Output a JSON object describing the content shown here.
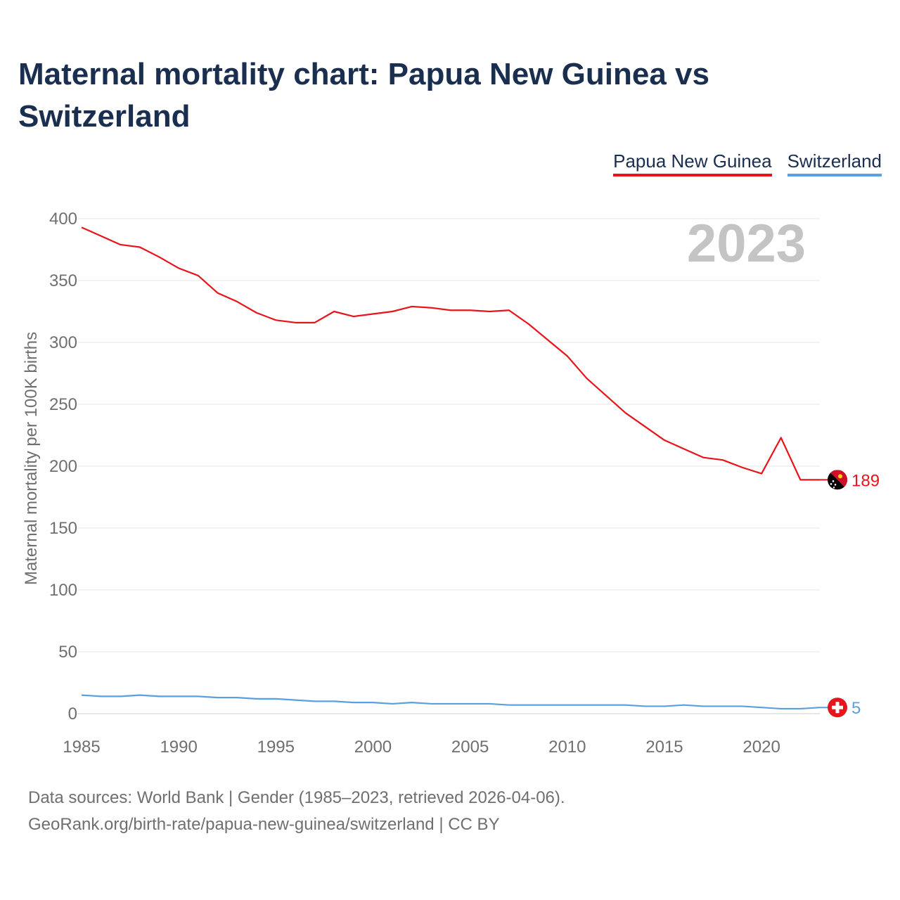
{
  "title": "Maternal mortality chart: Papua New Guinea vs Switzerland",
  "legend": {
    "png_label": "Papua New Guinea",
    "che_label": "Switzerland"
  },
  "year_watermark": "2023",
  "footer": {
    "line1": "Data sources: World Bank | Gender (1985–2023, retrieved 2026-04-06).",
    "line2": "GeoRank.org/birth-rate/papua-new-guinea/switzerland | CC BY"
  },
  "chart_data": {
    "type": "line",
    "title": "Maternal mortality chart: Papua New Guinea vs Switzerland",
    "xlabel": "",
    "ylabel": "Maternal mortality per 100K births",
    "xlim": [
      1985,
      2023
    ],
    "ylim": [
      0,
      400
    ],
    "x_ticks": [
      1985,
      1990,
      1995,
      2000,
      2005,
      2010,
      2015,
      2020
    ],
    "y_ticks": [
      0,
      50,
      100,
      150,
      200,
      250,
      300,
      350,
      400
    ],
    "grid": true,
    "legend_position": "top-right",
    "x": [
      1985,
      1986,
      1987,
      1988,
      1989,
      1990,
      1991,
      1992,
      1993,
      1994,
      1995,
      1996,
      1997,
      1998,
      1999,
      2000,
      2001,
      2002,
      2003,
      2004,
      2005,
      2006,
      2007,
      2008,
      2009,
      2010,
      2011,
      2012,
      2013,
      2014,
      2015,
      2016,
      2017,
      2018,
      2019,
      2020,
      2021,
      2022,
      2023
    ],
    "series": [
      {
        "name": "Papua New Guinea",
        "color": "#e8141b",
        "end_label": "189",
        "flag_icon": "papua-new-guinea-flag-icon",
        "values": [
          393,
          386,
          379,
          377,
          369,
          360,
          354,
          340,
          333,
          324,
          318,
          316,
          316,
          325,
          321,
          323,
          325,
          329,
          328,
          326,
          326,
          325,
          326,
          315,
          302,
          289,
          271,
          257,
          243,
          232,
          221,
          214,
          207,
          205,
          199,
          194,
          223,
          189,
          189
        ]
      },
      {
        "name": "Switzerland",
        "color": "#5b9fe0",
        "end_label": "5",
        "flag_icon": "switzerland-flag-icon",
        "values": [
          15,
          14,
          14,
          15,
          14,
          14,
          14,
          13,
          13,
          12,
          12,
          11,
          10,
          10,
          9,
          9,
          8,
          9,
          8,
          8,
          8,
          8,
          7,
          7,
          7,
          7,
          7,
          7,
          7,
          6,
          6,
          7,
          6,
          6,
          6,
          5,
          4,
          4,
          5
        ]
      }
    ]
  }
}
